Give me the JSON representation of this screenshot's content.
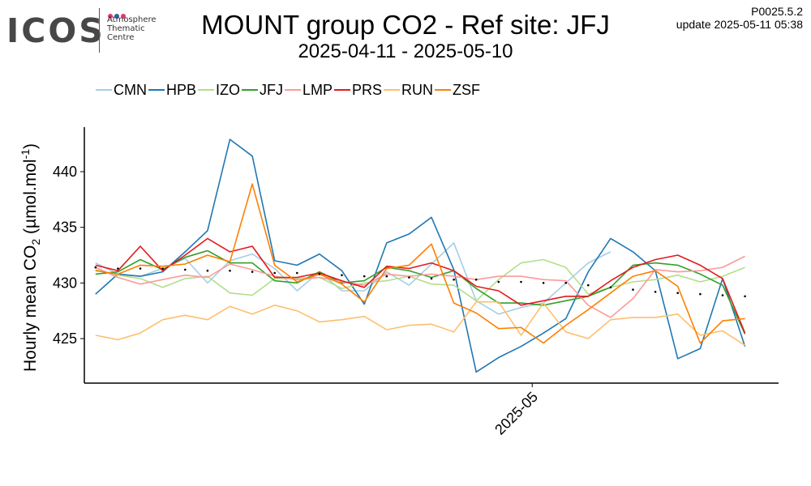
{
  "header": {
    "logo_word": "ICOS",
    "logo_lines": [
      "Atmosphere",
      "Thematic",
      "Centre"
    ],
    "logo_dot_colors": [
      "#e8336d",
      "#2f5fa7",
      "#e8336d"
    ],
    "title": "MOUNT group CO2 - Ref site: JFJ",
    "subtitle": "2025-04-11 - 2025-05-10",
    "version": "P0025.5.2",
    "update": "update  2025-05-11 05:38"
  },
  "chart_data": {
    "type": "line",
    "title": "MOUNT group CO2 - Ref site: JFJ",
    "subtitle": "2025-04-11 - 2025-05-10",
    "xlabel": "",
    "ylabel_parts": [
      "Hourly mean  CO",
      "2",
      " (µmol.mol",
      "-1",
      ")"
    ],
    "x_tick_labels": [
      "2025-05"
    ],
    "y_ticks": [
      425,
      430,
      435,
      440
    ],
    "ylim": [
      421.0,
      444.0
    ],
    "x_domain": [
      "2025-04-11",
      "2025-05-12"
    ],
    "grid": false,
    "legend_position": "top-left",
    "x": [
      "2025-04-11",
      "2025-04-12",
      "2025-04-13",
      "2025-04-14",
      "2025-04-15",
      "2025-04-16",
      "2025-04-17",
      "2025-04-18",
      "2025-04-19",
      "2025-04-20",
      "2025-04-21",
      "2025-04-22",
      "2025-04-23",
      "2025-04-24",
      "2025-04-25",
      "2025-04-26",
      "2025-04-27",
      "2025-04-28",
      "2025-04-29",
      "2025-04-30",
      "2025-05-01",
      "2025-05-02",
      "2025-05-03",
      "2025-05-04",
      "2025-05-05",
      "2025-05-06",
      "2025-05-07",
      "2025-05-08",
      "2025-05-09",
      "2025-05-10"
    ],
    "series": [
      {
        "name": "CMN",
        "color": "#a6cee3",
        "values": [
          431.8,
          430.8,
          430.6,
          431.3,
          432.2,
          430.0,
          432.0,
          432.6,
          431.3,
          429.3,
          431.0,
          429.3,
          429.3,
          431.0,
          429.8,
          431.7,
          433.6,
          428.4,
          427.2,
          427.8,
          428.2,
          430.0,
          431.8,
          432.8,
          null,
          null,
          null,
          null,
          null,
          null
        ]
      },
      {
        "name": "HPB",
        "color": "#1f78b4",
        "values": [
          429.0,
          430.8,
          430.6,
          431.0,
          432.8,
          434.7,
          442.9,
          441.4,
          432.0,
          431.6,
          432.6,
          431.1,
          428.1,
          433.6,
          434.4,
          435.9,
          431.2,
          422.0,
          423.3,
          424.3,
          425.5,
          426.8,
          431.0,
          434.0,
          432.8,
          431.1,
          423.2,
          424.1,
          430.4,
          424.3
        ]
      },
      {
        "name": "IZO",
        "color": "#b2df8a",
        "values": [
          431.2,
          430.7,
          430.4,
          429.6,
          430.4,
          430.6,
          429.1,
          428.9,
          430.4,
          430.4,
          430.5,
          429.5,
          430.0,
          430.2,
          430.6,
          429.9,
          429.8,
          428.4,
          430.3,
          431.8,
          432.1,
          431.4,
          429.0,
          429.6,
          430.1,
          430.3,
          430.7,
          430.1,
          430.6,
          431.4
        ]
      },
      {
        "name": "JFJ",
        "color": "#33a02c",
        "values": [
          430.8,
          431.0,
          432.1,
          431.2,
          432.3,
          432.9,
          431.8,
          431.8,
          430.2,
          430.0,
          431.0,
          430.0,
          430.2,
          431.4,
          431.1,
          430.5,
          431.1,
          429.5,
          428.2,
          428.2,
          428.0,
          428.4,
          428.8,
          429.6,
          431.6,
          431.8,
          431.6,
          430.8,
          429.8,
          425.4
        ]
      },
      {
        "name": "LMP",
        "color": "#fb9a99",
        "values": [
          431.4,
          430.5,
          429.9,
          430.3,
          430.7,
          430.5,
          431.7,
          431.2,
          430.6,
          430.3,
          430.5,
          430.1,
          429.8,
          430.8,
          430.6,
          430.8,
          430.6,
          430.3,
          430.6,
          430.6,
          430.3,
          430.2,
          428.0,
          426.9,
          428.6,
          431.2,
          431.0,
          431.1,
          431.4,
          432.4
        ]
      },
      {
        "name": "PRS",
        "color": "#e31a1c",
        "values": [
          431.6,
          431.1,
          433.3,
          431.1,
          432.5,
          434.0,
          432.8,
          433.3,
          430.5,
          430.5,
          430.9,
          430.2,
          429.6,
          431.5,
          431.3,
          431.8,
          431.1,
          429.7,
          429.3,
          428.0,
          428.4,
          428.8,
          428.8,
          430.2,
          431.4,
          432.1,
          432.5,
          431.6,
          430.4,
          425.5
        ]
      },
      {
        "name": "RUN",
        "color": "#fdbf6f",
        "values": [
          425.3,
          424.9,
          425.5,
          426.7,
          427.1,
          426.7,
          427.9,
          427.2,
          428.0,
          427.5,
          426.5,
          426.7,
          427.0,
          425.8,
          426.2,
          426.3,
          425.6,
          428.3,
          428.3,
          425.3,
          428.2,
          425.6,
          425.0,
          426.7,
          426.9,
          426.9,
          427.2,
          425.3,
          425.7,
          424.4
        ]
      },
      {
        "name": "ZSF",
        "color": "#ff7f00",
        "values": [
          431.1,
          430.8,
          431.6,
          431.5,
          431.7,
          432.5,
          431.9,
          438.9,
          431.6,
          430.1,
          430.8,
          429.9,
          428.3,
          431.3,
          431.6,
          433.5,
          428.2,
          427.3,
          425.9,
          426.0,
          424.6,
          426.2,
          427.6,
          429.1,
          430.6,
          431.1,
          429.7,
          424.6,
          426.6,
          426.8
        ]
      },
      {
        "name": "",
        "color": "#000000",
        "style": "dotted",
        "values": [
          431.4,
          431.3,
          431.3,
          431.3,
          431.2,
          431.1,
          431.1,
          431.0,
          430.9,
          430.9,
          430.8,
          430.7,
          430.6,
          430.6,
          430.5,
          430.4,
          430.3,
          430.3,
          430.1,
          430.1,
          430.0,
          430.0,
          429.8,
          429.6,
          429.4,
          429.2,
          429.1,
          429.0,
          428.9,
          428.8
        ]
      }
    ]
  }
}
